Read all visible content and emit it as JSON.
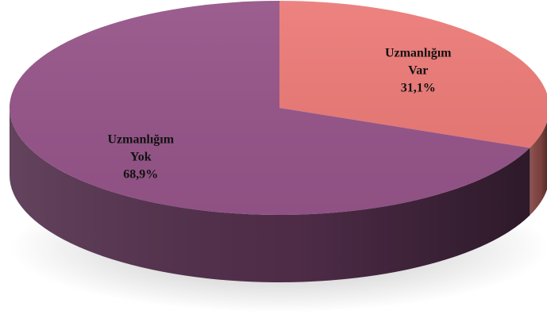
{
  "chart_data": {
    "type": "pie",
    "title": "",
    "style": "3d",
    "start_angle_deg": 90,
    "direction": "clockwise",
    "slices": [
      {
        "label_lines": [
          "Uzmanlığım",
          "Var"
        ],
        "value": 31.1,
        "value_label": "31,1%",
        "color": "#EC7B78"
      },
      {
        "label_lines": [
          "Uzmanlığım",
          "Yok"
        ],
        "value": 68.9,
        "value_label": "68,9%",
        "color": "#955488"
      }
    ],
    "legend": "none"
  }
}
